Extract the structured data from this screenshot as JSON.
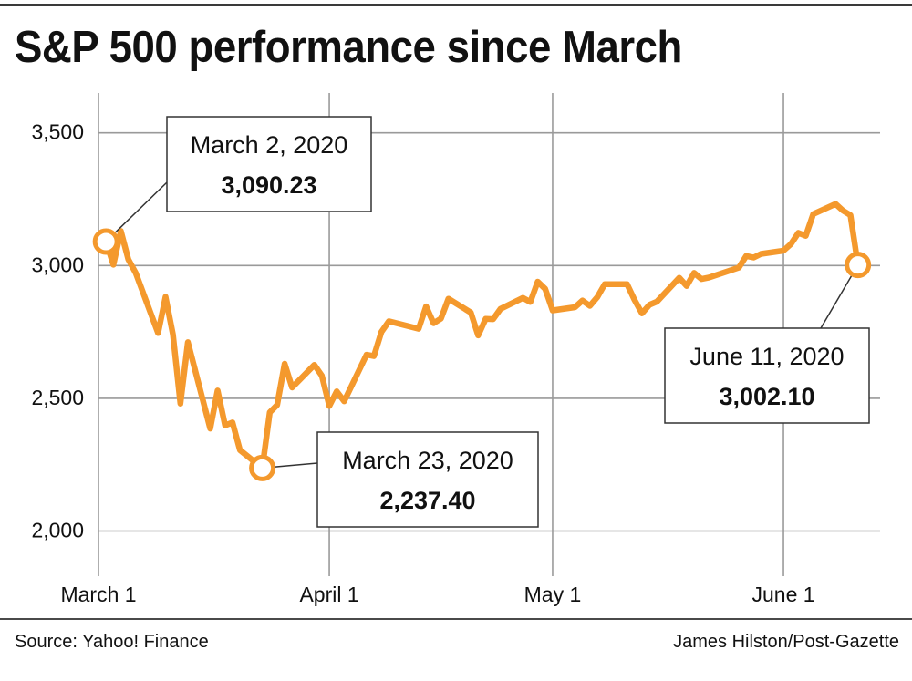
{
  "chart_data": {
    "type": "line",
    "title": "S&P 500 performance since March",
    "xlabel": "",
    "ylabel": "",
    "ylim": [
      1830,
      3650
    ],
    "yticks": [
      2000,
      2500,
      3000,
      3500
    ],
    "ytick_labels": [
      "2,000",
      "2,500",
      "3,000",
      "3,500"
    ],
    "xticks": [
      {
        "date": "2020-03-01",
        "label": "March 1"
      },
      {
        "date": "2020-04-01",
        "label": "April 1"
      },
      {
        "date": "2020-05-01",
        "label": "May 1"
      },
      {
        "date": "2020-06-01",
        "label": "June 1"
      }
    ],
    "xlim": [
      "2020-03-01",
      "2020-06-13"
    ],
    "grid": true,
    "color": "#f4992d",
    "series": [
      {
        "name": "",
        "points": [
          [
            "2020-03-02",
            3090.23
          ],
          [
            "2020-03-03",
            3003
          ],
          [
            "2020-03-04",
            3130
          ],
          [
            "2020-03-05",
            3023
          ],
          [
            "2020-03-06",
            2972
          ],
          [
            "2020-03-09",
            2746
          ],
          [
            "2020-03-10",
            2882
          ],
          [
            "2020-03-11",
            2741
          ],
          [
            "2020-03-12",
            2480
          ],
          [
            "2020-03-13",
            2711
          ],
          [
            "2020-03-16",
            2386
          ],
          [
            "2020-03-17",
            2529
          ],
          [
            "2020-03-18",
            2398
          ],
          [
            "2020-03-19",
            2409
          ],
          [
            "2020-03-20",
            2305
          ],
          [
            "2020-03-23",
            2237.4
          ],
          [
            "2020-03-24",
            2447
          ],
          [
            "2020-03-25",
            2475
          ],
          [
            "2020-03-26",
            2630
          ],
          [
            "2020-03-27",
            2541
          ],
          [
            "2020-03-30",
            2626
          ],
          [
            "2020-03-31",
            2585
          ],
          [
            "2020-04-01",
            2471
          ],
          [
            "2020-04-02",
            2526
          ],
          [
            "2020-04-03",
            2489
          ],
          [
            "2020-04-06",
            2664
          ],
          [
            "2020-04-07",
            2659
          ],
          [
            "2020-04-08",
            2750
          ],
          [
            "2020-04-09",
            2790
          ],
          [
            "2020-04-13",
            2762
          ],
          [
            "2020-04-14",
            2846
          ],
          [
            "2020-04-15",
            2783
          ],
          [
            "2020-04-16",
            2800
          ],
          [
            "2020-04-17",
            2875
          ],
          [
            "2020-04-20",
            2823
          ],
          [
            "2020-04-21",
            2737
          ],
          [
            "2020-04-22",
            2799
          ],
          [
            "2020-04-23",
            2798
          ],
          [
            "2020-04-24",
            2837
          ],
          [
            "2020-04-27",
            2878
          ],
          [
            "2020-04-28",
            2863
          ],
          [
            "2020-04-29",
            2939
          ],
          [
            "2020-04-30",
            2912
          ],
          [
            "2020-05-01",
            2831
          ],
          [
            "2020-05-04",
            2843
          ],
          [
            "2020-05-05",
            2868
          ],
          [
            "2020-05-06",
            2848
          ],
          [
            "2020-05-07",
            2881
          ],
          [
            "2020-05-08",
            2930
          ],
          [
            "2020-05-11",
            2930
          ],
          [
            "2020-05-12",
            2870
          ],
          [
            "2020-05-13",
            2820
          ],
          [
            "2020-05-14",
            2852
          ],
          [
            "2020-05-15",
            2864
          ],
          [
            "2020-05-18",
            2954
          ],
          [
            "2020-05-19",
            2923
          ],
          [
            "2020-05-20",
            2972
          ],
          [
            "2020-05-21",
            2949
          ],
          [
            "2020-05-22",
            2955
          ],
          [
            "2020-05-26",
            2992
          ],
          [
            "2020-05-27",
            3036
          ],
          [
            "2020-05-28",
            3030
          ],
          [
            "2020-05-29",
            3044
          ],
          [
            "2020-06-01",
            3056
          ],
          [
            "2020-06-02",
            3081
          ],
          [
            "2020-06-03",
            3123
          ],
          [
            "2020-06-04",
            3112
          ],
          [
            "2020-06-05",
            3194
          ],
          [
            "2020-06-08",
            3232
          ],
          [
            "2020-06-09",
            3207
          ],
          [
            "2020-06-10",
            3190
          ],
          [
            "2020-06-11",
            3002.1
          ]
        ]
      }
    ],
    "annotations": [
      {
        "date": "2020-03-02",
        "value": 3090.23,
        "label": "March 2, 2020",
        "value_label": "3,090.23"
      },
      {
        "date": "2020-03-23",
        "value": 2237.4,
        "label": "March 23, 2020",
        "value_label": "2,237.40"
      },
      {
        "date": "2020-06-11",
        "value": 3002.1,
        "label": "June 11, 2020",
        "value_label": "3,002.10"
      }
    ]
  },
  "footer": {
    "source": "Source: Yahoo! Finance",
    "credit": "James Hilston/Post-Gazette"
  }
}
